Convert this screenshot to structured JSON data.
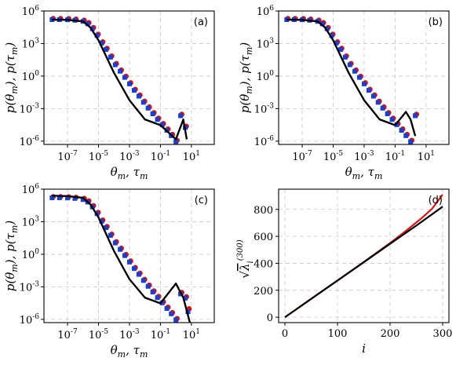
{
  "chart_data": [
    {
      "type": "line",
      "panel_label": "(a)",
      "xscale": "log",
      "yscale": "log",
      "xlim": [
        3e-09,
        300
      ],
      "ylim": [
        5e-07,
        1000000.0
      ],
      "xticks": [
        -7,
        -5,
        -3,
        -1,
        1
      ],
      "yticks": [
        -6,
        -3,
        0,
        3,
        6
      ],
      "xlabel": "θm, τm",
      "ylabel": "p(θm), p(τm)",
      "grid": true,
      "series": [
        {
          "kind": "line",
          "color": "#000000",
          "x": [
            1e-08,
            1e-07,
            1e-06,
            3e-06,
            1e-05,
            0.0001,
            0.001,
            0.01,
            0.1,
            1,
            3,
            5
          ],
          "y": [
            160000.0,
            150000.0,
            110000.0,
            30000.0,
            2000.0,
            2,
            0.006,
            0.0001,
            3e-05,
            1.5e-06,
            0.0001,
            1.5e-06
          ]
        },
        {
          "kind": "markers",
          "color": "#e01010",
          "marker": "circle",
          "x": [
            1e-08,
            3e-08,
            1e-07,
            3e-07,
            1e-06,
            2e-06,
            4e-06,
            8e-06,
            1.6e-05,
            3e-05,
            6e-05,
            0.00012,
            0.00025,
            0.0005,
            0.001,
            0.002,
            0.004,
            0.008,
            0.016,
            0.032,
            0.064,
            0.13,
            0.26,
            0.5,
            1,
            2,
            4
          ],
          "y": [
            170000.0,
            170000.0,
            165000.0,
            150000.0,
            120000.0,
            70000.0,
            25000.0,
            6000.0,
            1200.0,
            300,
            60,
            12,
            3,
            0.8,
            0.2,
            0.05,
            0.015,
            0.004,
            0.0012,
            0.00035,
            0.00011,
            3.5e-05,
            1.1e-05,
            3.5e-06,
            1e-06,
            0.00025,
            2e-05
          ]
        },
        {
          "kind": "markers",
          "color": "#1a3fcf",
          "marker": "square",
          "x": [
            1e-08,
            3e-08,
            1e-07,
            3e-07,
            1e-06,
            2e-06,
            4e-06,
            8e-06,
            1.6e-05,
            3e-05,
            6e-05,
            0.00012,
            0.00025,
            0.0005,
            0.001,
            0.002,
            0.004,
            0.008,
            0.016,
            0.032,
            0.064,
            0.13,
            0.26,
            0.5,
            1,
            2,
            4
          ],
          "y": [
            160000.0,
            160000.0,
            155000.0,
            140000.0,
            110000.0,
            65000.0,
            23000.0,
            5500.0,
            1100.0,
            280,
            55,
            11,
            2.8,
            0.75,
            0.19,
            0.048,
            0.014,
            0.0038,
            0.0011,
            0.00033,
            0.0001,
            3.3e-05,
            1e-05,
            3.2e-06,
            9e-07,
            0.00022,
            1.8e-05
          ]
        }
      ]
    },
    {
      "type": "line",
      "panel_label": "(b)",
      "xscale": "log",
      "yscale": "log",
      "xlim": [
        3e-09,
        300
      ],
      "ylim": [
        5e-07,
        1000000.0
      ],
      "xticks": [
        -7,
        -5,
        -3,
        -1,
        1
      ],
      "yticks": [
        -6,
        -3,
        0,
        3,
        6
      ],
      "xlabel": "θm, τm",
      "ylabel": "p(θm), p(τm)",
      "grid": true,
      "series": [
        {
          "kind": "line",
          "color": "#000000",
          "x": [
            1e-08,
            1e-07,
            1e-06,
            3e-06,
            1e-05,
            0.0001,
            0.001,
            0.01,
            0.1,
            0.5,
            1,
            2
          ],
          "y": [
            160000.0,
            150000.0,
            110000.0,
            30000.0,
            2000.0,
            2,
            0.006,
            0.0001,
            3e-05,
            0.0005,
            0.0001,
            3e-06
          ]
        },
        {
          "kind": "markers",
          "color": "#e01010",
          "marker": "circle",
          "x": [
            1e-08,
            3e-08,
            1e-07,
            3e-07,
            1e-06,
            2e-06,
            4e-06,
            8e-06,
            1.6e-05,
            3e-05,
            6e-05,
            0.00012,
            0.00025,
            0.0005,
            0.001,
            0.002,
            0.004,
            0.008,
            0.016,
            0.032,
            0.064,
            0.13,
            0.26,
            0.5,
            1,
            2
          ],
          "y": [
            170000.0,
            170000.0,
            165000.0,
            150000.0,
            120000.0,
            70000.0,
            25000.0,
            6000.0,
            1200.0,
            300,
            60,
            12,
            3,
            0.8,
            0.2,
            0.05,
            0.015,
            0.004,
            0.0012,
            0.00035,
            0.00011,
            3.5e-05,
            1.1e-05,
            3.5e-06,
            1e-06,
            0.00025
          ]
        },
        {
          "kind": "markers",
          "color": "#1a3fcf",
          "marker": "square",
          "x": [
            1e-08,
            3e-08,
            1e-07,
            3e-07,
            1e-06,
            2e-06,
            4e-06,
            8e-06,
            1.6e-05,
            3e-05,
            6e-05,
            0.00012,
            0.00025,
            0.0005,
            0.001,
            0.002,
            0.004,
            0.008,
            0.016,
            0.032,
            0.064,
            0.13,
            0.26,
            0.5,
            1,
            2
          ],
          "y": [
            160000.0,
            160000.0,
            155000.0,
            140000.0,
            110000.0,
            65000.0,
            23000.0,
            5500.0,
            1100.0,
            280,
            55,
            11,
            2.8,
            0.75,
            0.19,
            0.048,
            0.014,
            0.0038,
            0.0011,
            0.00033,
            0.0001,
            3.3e-05,
            1e-05,
            3.2e-06,
            9e-07,
            0.00022
          ]
        }
      ]
    },
    {
      "type": "line",
      "panel_label": "(c)",
      "xscale": "log",
      "yscale": "log",
      "xlim": [
        3e-09,
        300
      ],
      "ylim": [
        5e-07,
        1000000.0
      ],
      "xticks": [
        -7,
        -5,
        -3,
        -1,
        1
      ],
      "yticks": [
        -6,
        -3,
        0,
        3,
        6
      ],
      "xlabel": "θm, τm",
      "ylabel": "p(θm), p(τm)",
      "grid": true,
      "series": [
        {
          "kind": "line",
          "color": "#000000",
          "x": [
            1e-08,
            1e-07,
            1e-06,
            3e-06,
            1e-05,
            0.0001,
            0.001,
            0.01,
            0.1,
            1,
            3,
            8
          ],
          "y": [
            250000.0,
            230000.0,
            160000.0,
            40000.0,
            2500.0,
            2,
            0.005,
            0.0001,
            3e-05,
            0.002,
            0.0001,
            5e-07
          ]
        },
        {
          "kind": "markers",
          "color": "#e01010",
          "marker": "circle",
          "x": [
            1e-08,
            3e-08,
            1e-07,
            3e-07,
            1e-06,
            2e-06,
            4e-06,
            8e-06,
            1.6e-05,
            3e-05,
            6e-05,
            0.00012,
            0.00025,
            0.0005,
            0.001,
            0.002,
            0.004,
            0.008,
            0.016,
            0.032,
            0.064,
            0.13,
            0.26,
            0.5,
            1,
            2,
            4,
            6
          ],
          "y": [
            170000.0,
            170000.0,
            165000.0,
            150000.0,
            120000.0,
            70000.0,
            25000.0,
            6000.0,
            1200.0,
            300,
            60,
            12,
            3,
            0.8,
            0.2,
            0.05,
            0.015,
            0.004,
            0.0012,
            0.00035,
            0.00011,
            3.5e-05,
            1.1e-05,
            3.5e-06,
            1e-06,
            0.00025,
            0.0001,
            8e-06
          ]
        },
        {
          "kind": "markers",
          "color": "#1a3fcf",
          "marker": "square",
          "x": [
            1e-08,
            3e-08,
            1e-07,
            3e-07,
            1e-06,
            2e-06,
            4e-06,
            8e-06,
            1.6e-05,
            3e-05,
            6e-05,
            0.00012,
            0.00025,
            0.0005,
            0.001,
            0.002,
            0.004,
            0.008,
            0.016,
            0.032,
            0.064,
            0.13,
            0.26,
            0.5,
            1,
            2,
            4,
            6
          ],
          "y": [
            160000.0,
            160000.0,
            155000.0,
            140000.0,
            110000.0,
            65000.0,
            23000.0,
            5500.0,
            1100.0,
            280,
            55,
            11,
            2.8,
            0.75,
            0.19,
            0.048,
            0.014,
            0.0038,
            0.0011,
            0.00033,
            0.0001,
            3.3e-05,
            1e-05,
            3.2e-06,
            9e-07,
            0.00022,
            9e-05,
            5e-06
          ]
        }
      ]
    },
    {
      "type": "line",
      "panel_label": "(d)",
      "xscale": "linear",
      "yscale": "linear",
      "xlim": [
        -12,
        312
      ],
      "ylim": [
        -40,
        950
      ],
      "xticks": [
        0,
        100,
        200,
        300
      ],
      "yticks": [
        0,
        200,
        400,
        600,
        800
      ],
      "xlabel": "i",
      "ylabel": "√λi(300)",
      "grid": true,
      "series": [
        {
          "kind": "line",
          "color": "#e01010",
          "x": [
            0,
            50,
            100,
            150,
            200,
            230,
            260,
            280,
            300
          ],
          "y": [
            0,
            137,
            273,
            410,
            550,
            640,
            735,
            805,
            910
          ]
        },
        {
          "kind": "line",
          "color": "#000000",
          "x": [
            0,
            50,
            100,
            150,
            200,
            250,
            300
          ],
          "y": [
            0,
            136,
            272,
            408,
            545,
            680,
            820
          ]
        }
      ]
    }
  ]
}
